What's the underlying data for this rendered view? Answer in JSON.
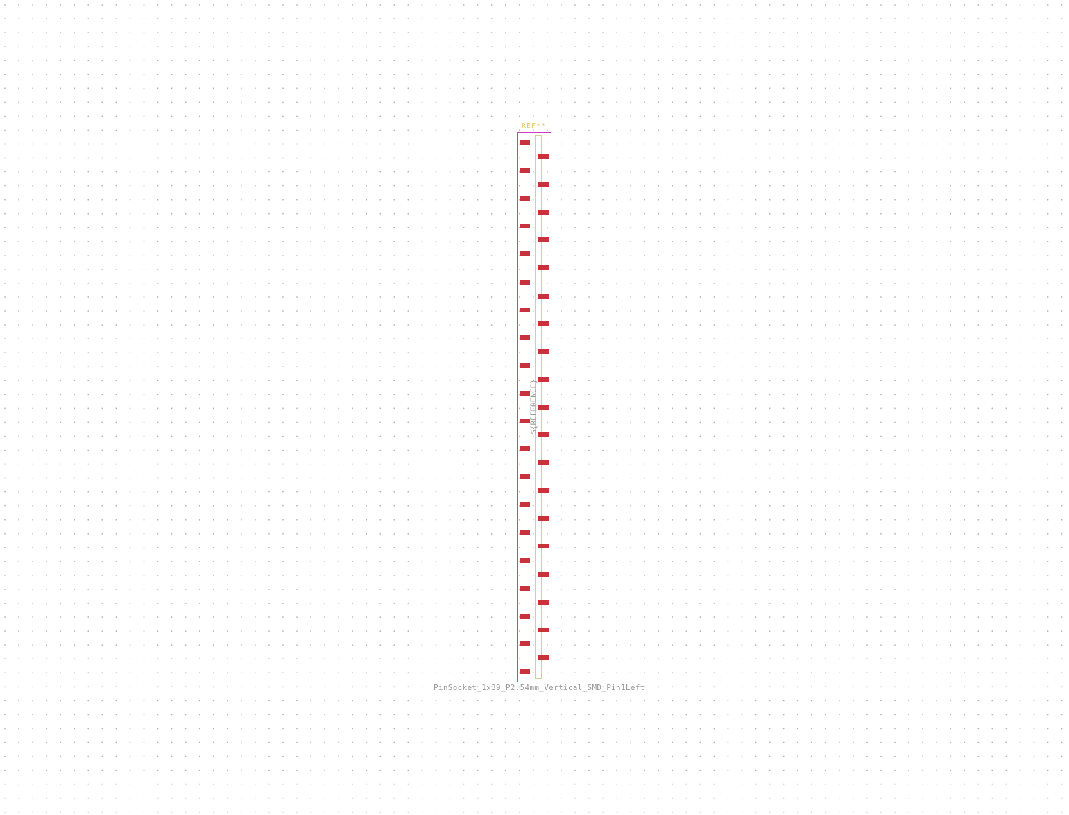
{
  "footprint": {
    "reference_top": "REF**",
    "reference_center": "${REFERENCE}",
    "name": "PinSocket_1x39_P2.54mm_Vertical_SMD_Pin1Left"
  },
  "pads": {
    "left_count": 20,
    "right_count": 19,
    "color": "#c8323c"
  },
  "colors": {
    "background": "#ffffff",
    "grid_dot": "#b4b4b4",
    "axis": "#c8c8c8",
    "courtyard": "#c83cc8",
    "fabrication": "#d2d28c",
    "reference_text": "#e6c864",
    "value_text": "#9a9a9a"
  }
}
